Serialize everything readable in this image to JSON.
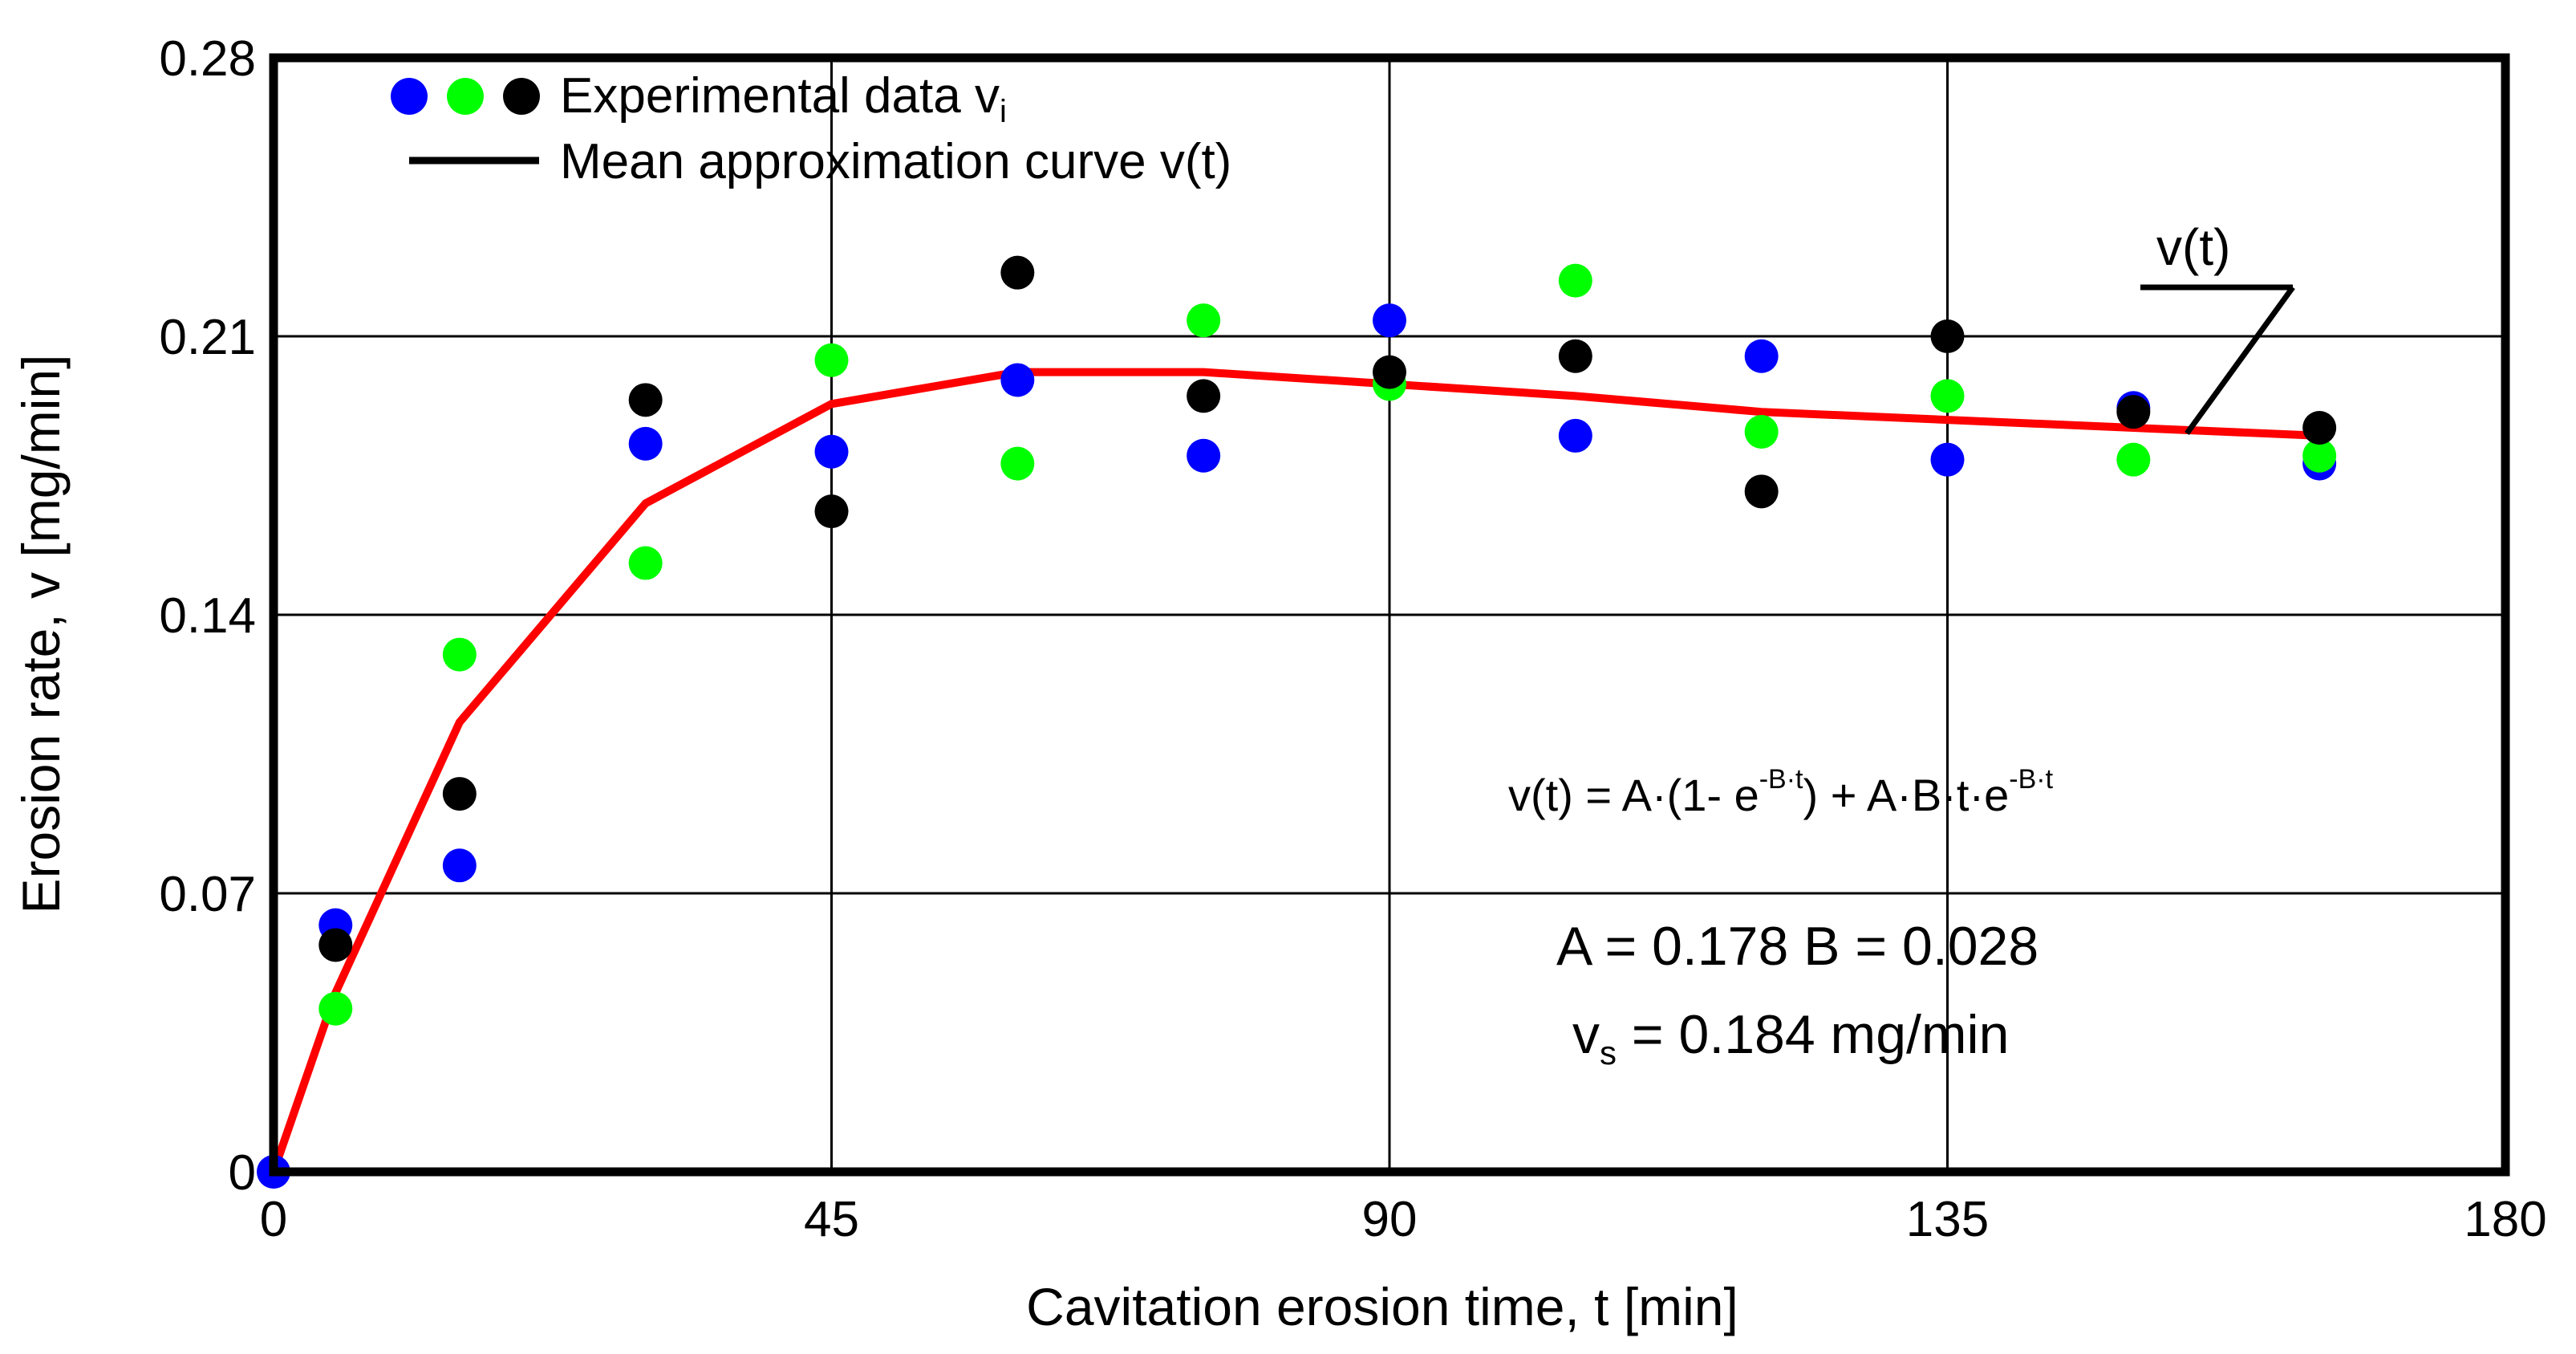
{
  "chart_data": {
    "type": "scatter",
    "xlabel": "Cavitation erosion time, t [min]",
    "ylabel": "Erosion rate, v [mg/min]",
    "xlim": [
      0,
      180
    ],
    "ylim": [
      0,
      0.28
    ],
    "xticks": [
      "0",
      "45",
      "90",
      "135",
      "180"
    ],
    "xtick_values": [
      0,
      45,
      90,
      135,
      180
    ],
    "yticks": [
      "0",
      "0.07",
      "0.14",
      "0.21",
      "0.28"
    ],
    "ytick_values": [
      0,
      0.07,
      0.14,
      0.21,
      0.28
    ],
    "grid": true,
    "legend_position": "top-left",
    "legend": {
      "scatter_label_main": "Experimental data v",
      "scatter_label_sub": "i",
      "line_label": "Mean approximation curve v(t)"
    },
    "series": [
      {
        "name": "blue",
        "color": "#0000ff",
        "x": [
          0,
          5,
          15,
          30,
          45,
          60,
          75,
          90,
          105,
          120,
          135,
          150,
          165
        ],
        "y": [
          0.0,
          0.062,
          0.077,
          0.183,
          0.181,
          0.199,
          0.18,
          0.214,
          0.185,
          0.205,
          0.179,
          0.192,
          0.178
        ]
      },
      {
        "name": "green",
        "color": "#00ff00",
        "x": [
          5,
          15,
          30,
          45,
          60,
          75,
          90,
          105,
          120,
          135,
          150,
          165
        ],
        "y": [
          0.041,
          0.13,
          0.153,
          0.204,
          0.178,
          0.214,
          0.198,
          0.224,
          0.186,
          0.195,
          0.179,
          0.18
        ]
      },
      {
        "name": "black",
        "color": "#000000",
        "x": [
          5,
          15,
          30,
          45,
          60,
          75,
          90,
          105,
          120,
          135,
          150,
          165
        ],
        "y": [
          0.057,
          0.095,
          0.194,
          0.166,
          0.226,
          0.195,
          0.201,
          0.205,
          0.171,
          0.21,
          0.191,
          0.187
        ]
      }
    ],
    "curve": {
      "name": "Mean approximation curve v(t)",
      "color": "#ff0000",
      "x": [
        0,
        5,
        15,
        30,
        45,
        60,
        75,
        90,
        105,
        120,
        135,
        150,
        165
      ],
      "y": [
        0.0,
        0.045,
        0.113,
        0.168,
        0.193,
        0.201,
        0.201,
        0.198,
        0.195,
        0.191,
        0.189,
        0.187,
        0.185
      ]
    },
    "annotations": {
      "curve_label": "v(t)",
      "formula_lhs": "v(t) = A·(1- e",
      "formula_exp1": "-B·t",
      "formula_mid": ") + A·B·t·e",
      "formula_exp2": "-B·t",
      "params": "A = 0.178  B = 0.028",
      "vs_symbol": "v",
      "vs_sub": "s",
      "vs_value": " = 0.184 mg/min"
    }
  }
}
